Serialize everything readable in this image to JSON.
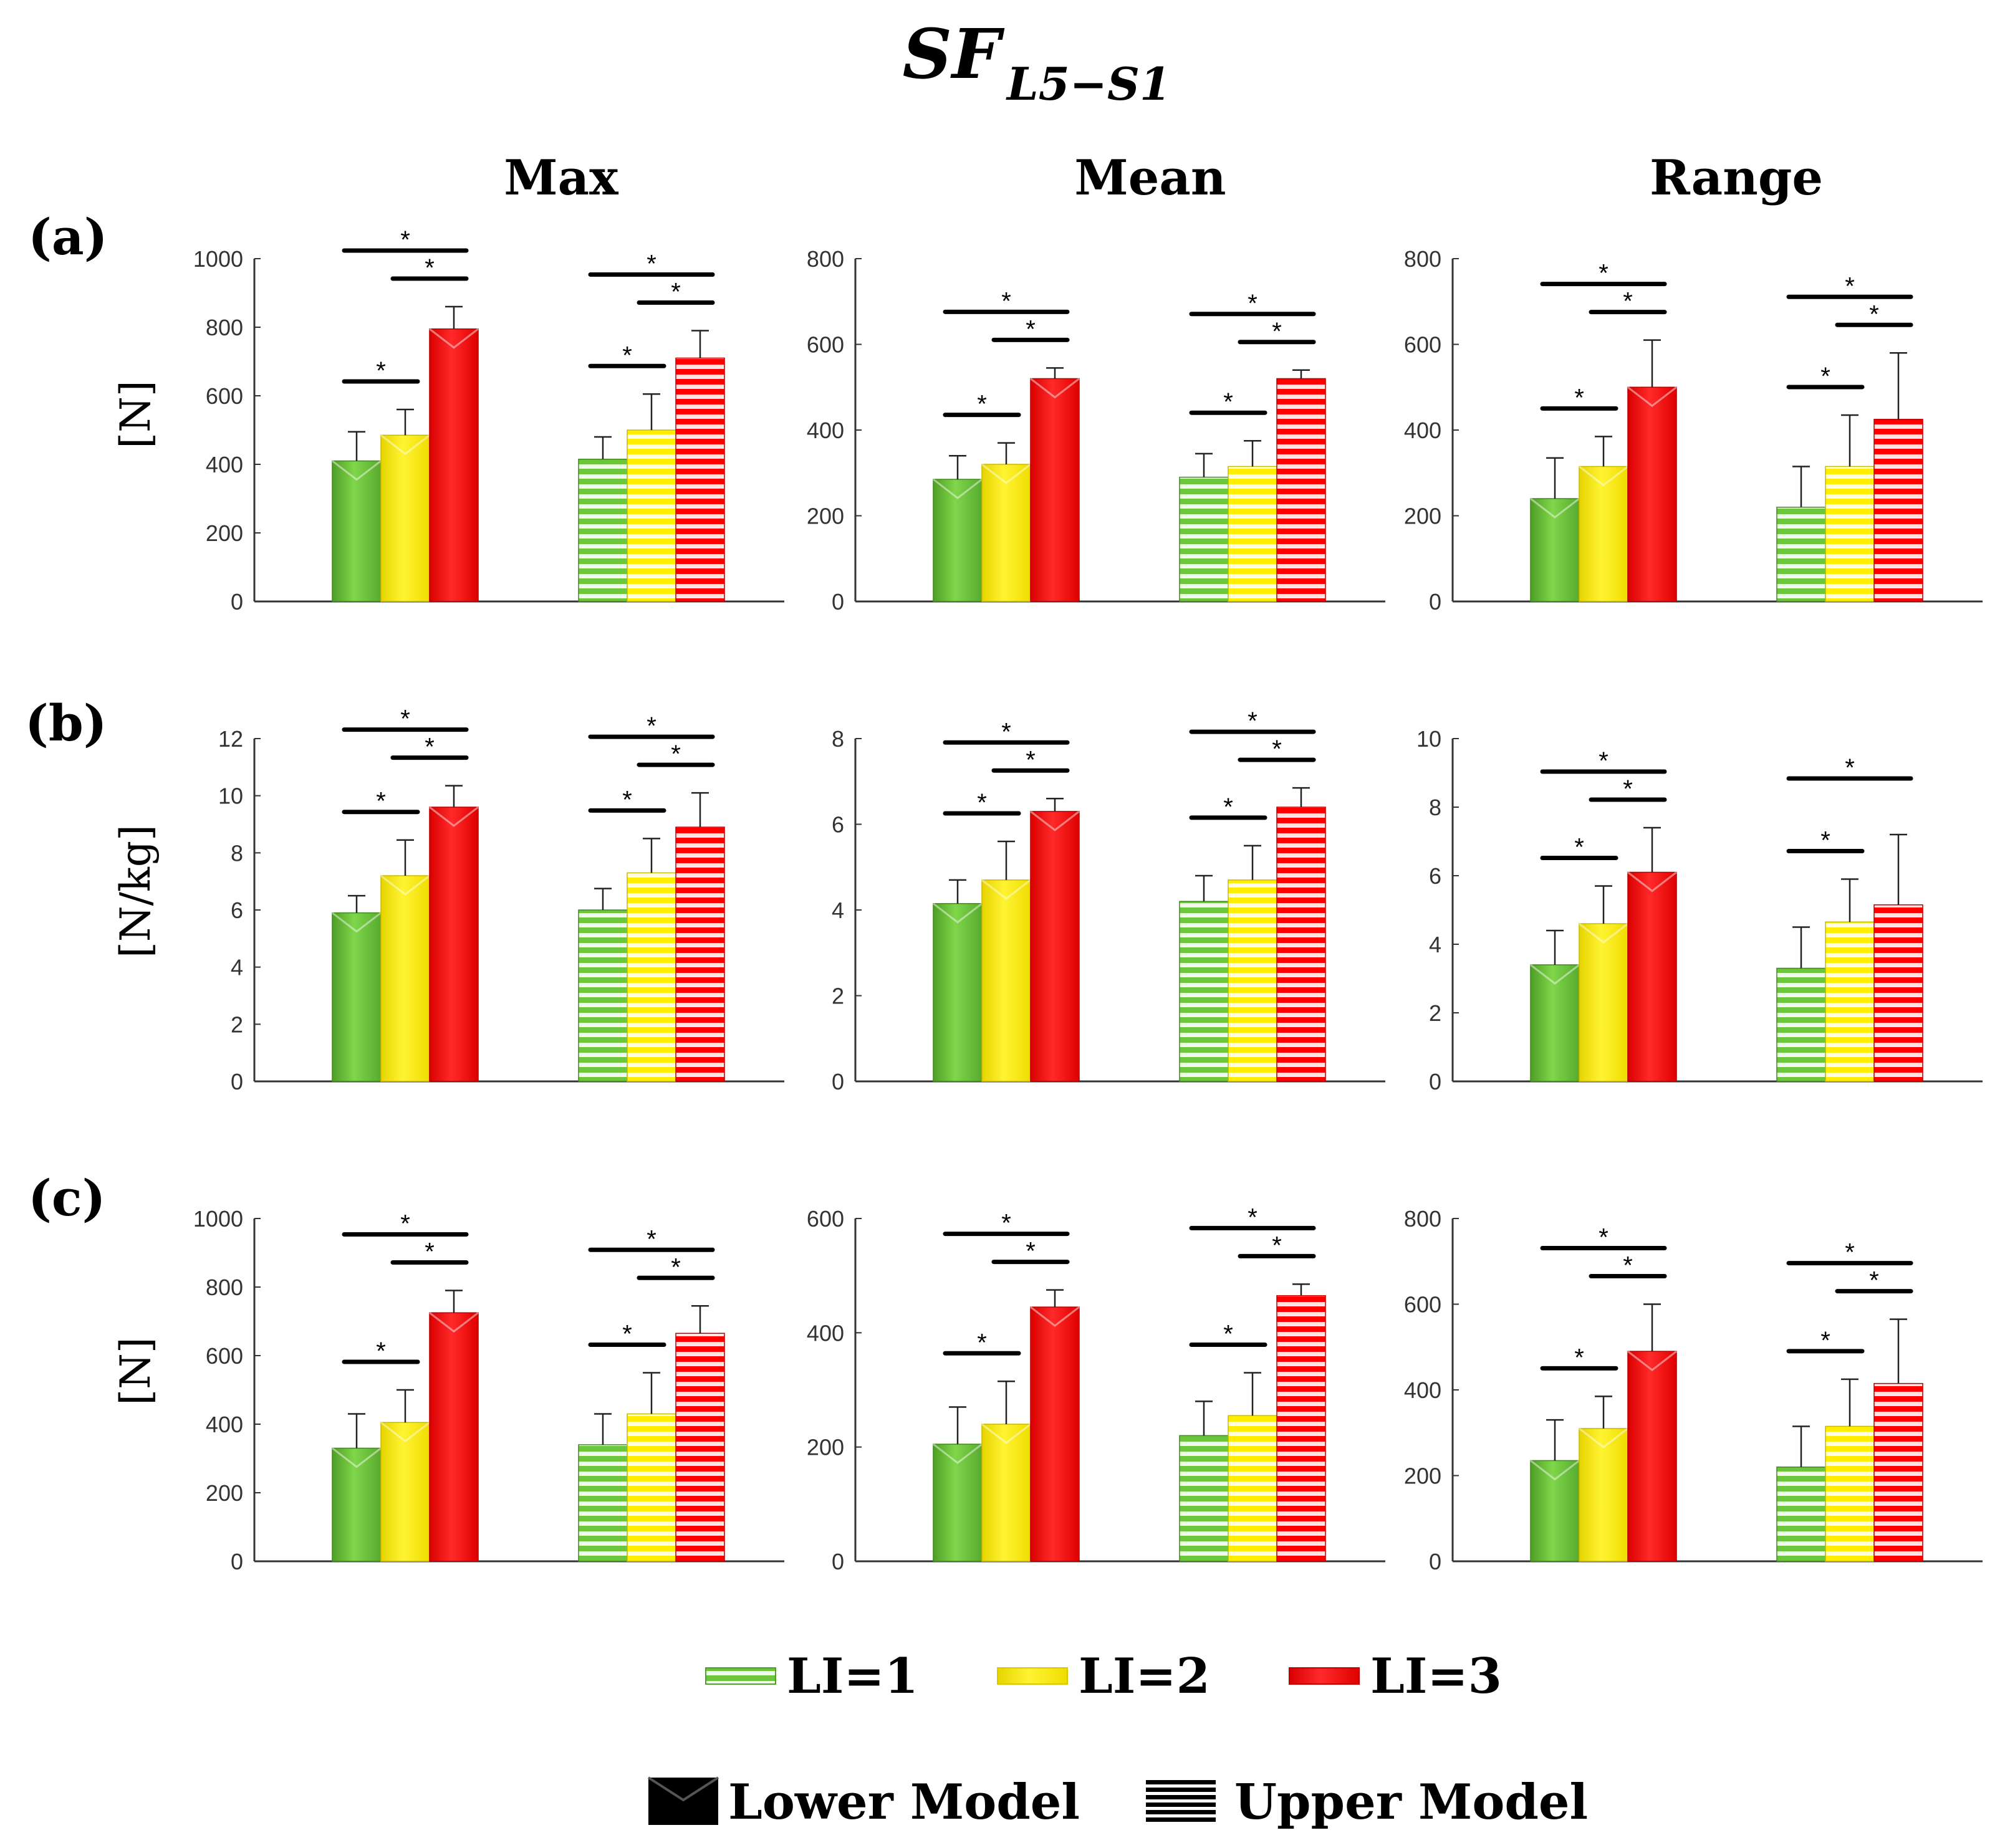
{
  "figure": {
    "title_main": "SF",
    "title_sub": "L5−S1",
    "column_titles": [
      "Max",
      "Mean",
      "Range"
    ],
    "row_labels": [
      "(a)",
      "(b)",
      "(c)"
    ],
    "row_units": [
      "[N]",
      "[N/kg]",
      "[N]"
    ],
    "colors": {
      "LI1": "#6cc63c",
      "LI2": "#ffee00",
      "LI3": "#ff0000"
    },
    "legend_li": [
      "LI=1",
      "LI=2",
      "LI=3"
    ],
    "legend_models": [
      "Lower Model",
      "Upper Model"
    ],
    "significance_label": "*"
  },
  "chart_data": [
    {
      "type": "bar",
      "row": "(a)",
      "column": "Max",
      "ylabel": "[N]",
      "ylim": [
        0,
        1000
      ],
      "yticks": [
        0,
        200,
        400,
        600,
        800,
        1000
      ],
      "groups": [
        "Lower Model",
        "Upper Model"
      ],
      "series": [
        {
          "name": "LI=1",
          "values": [
            410,
            415
          ],
          "errors": [
            85,
            65
          ]
        },
        {
          "name": "LI=2",
          "values": [
            485,
            500
          ],
          "errors": [
            75,
            105
          ]
        },
        {
          "name": "LI=3",
          "values": [
            795,
            710
          ],
          "errors": [
            65,
            80
          ]
        }
      ],
      "significance": [
        {
          "group": 0,
          "pair": [
            1,
            2
          ],
          "label": "*"
        },
        {
          "group": 0,
          "pair": [
            2,
            3
          ],
          "label": "*"
        },
        {
          "group": 0,
          "pair": [
            1,
            3
          ],
          "label": "*"
        },
        {
          "group": 1,
          "pair": [
            1,
            2
          ],
          "label": "*"
        },
        {
          "group": 1,
          "pair": [
            2,
            3
          ],
          "label": "*"
        },
        {
          "group": 1,
          "pair": [
            1,
            3
          ],
          "label": "*"
        }
      ]
    },
    {
      "type": "bar",
      "row": "(a)",
      "column": "Mean",
      "ylabel": "",
      "ylim": [
        0,
        800
      ],
      "yticks": [
        0,
        200,
        400,
        600,
        800
      ],
      "groups": [
        "Lower Model",
        "Upper Model"
      ],
      "series": [
        {
          "name": "LI=1",
          "values": [
            285,
            290
          ],
          "errors": [
            55,
            55
          ]
        },
        {
          "name": "LI=2",
          "values": [
            320,
            315
          ],
          "errors": [
            50,
            60
          ]
        },
        {
          "name": "LI=3",
          "values": [
            520,
            520
          ],
          "errors": [
            25,
            20
          ]
        }
      ],
      "significance": [
        {
          "group": 0,
          "pair": [
            1,
            2
          ],
          "label": "*"
        },
        {
          "group": 0,
          "pair": [
            2,
            3
          ],
          "label": "*"
        },
        {
          "group": 0,
          "pair": [
            1,
            3
          ],
          "label": "*"
        },
        {
          "group": 1,
          "pair": [
            1,
            2
          ],
          "label": "*"
        },
        {
          "group": 1,
          "pair": [
            2,
            3
          ],
          "label": "*"
        },
        {
          "group": 1,
          "pair": [
            1,
            3
          ],
          "label": "*"
        }
      ]
    },
    {
      "type": "bar",
      "row": "(a)",
      "column": "Range",
      "ylabel": "",
      "ylim": [
        0,
        800
      ],
      "yticks": [
        0,
        200,
        400,
        600,
        800
      ],
      "groups": [
        "Lower Model",
        "Upper Model"
      ],
      "series": [
        {
          "name": "LI=1",
          "values": [
            240,
            220
          ],
          "errors": [
            95,
            95
          ]
        },
        {
          "name": "LI=2",
          "values": [
            315,
            315
          ],
          "errors": [
            70,
            120
          ]
        },
        {
          "name": "LI=3",
          "values": [
            500,
            425
          ],
          "errors": [
            110,
            155
          ]
        }
      ],
      "significance": [
        {
          "group": 0,
          "pair": [
            1,
            2
          ],
          "label": "*"
        },
        {
          "group": 0,
          "pair": [
            2,
            3
          ],
          "label": "*"
        },
        {
          "group": 0,
          "pair": [
            1,
            3
          ],
          "label": "*"
        },
        {
          "group": 1,
          "pair": [
            1,
            2
          ],
          "label": "*"
        },
        {
          "group": 1,
          "pair": [
            2,
            3
          ],
          "label": "*"
        },
        {
          "group": 1,
          "pair": [
            1,
            3
          ],
          "label": "*"
        }
      ]
    },
    {
      "type": "bar",
      "row": "(b)",
      "column": "Max",
      "ylabel": "[N/kg]",
      "ylim": [
        0,
        12
      ],
      "yticks": [
        0,
        2,
        4,
        6,
        8,
        10,
        12
      ],
      "groups": [
        "Lower Model",
        "Upper Model"
      ],
      "series": [
        {
          "name": "LI=1",
          "values": [
            5.9,
            6.0
          ],
          "errors": [
            0.6,
            0.75
          ]
        },
        {
          "name": "LI=2",
          "values": [
            7.2,
            7.3
          ],
          "errors": [
            1.25,
            1.2
          ]
        },
        {
          "name": "LI=3",
          "values": [
            9.6,
            8.9
          ],
          "errors": [
            0.75,
            1.2
          ]
        }
      ],
      "significance": [
        {
          "group": 0,
          "pair": [
            1,
            2
          ],
          "label": "*"
        },
        {
          "group": 0,
          "pair": [
            2,
            3
          ],
          "label": "*"
        },
        {
          "group": 0,
          "pair": [
            1,
            3
          ],
          "label": "*"
        },
        {
          "group": 1,
          "pair": [
            1,
            2
          ],
          "label": "*"
        },
        {
          "group": 1,
          "pair": [
            2,
            3
          ],
          "label": "*"
        },
        {
          "group": 1,
          "pair": [
            1,
            3
          ],
          "label": "*"
        }
      ]
    },
    {
      "type": "bar",
      "row": "(b)",
      "column": "Mean",
      "ylabel": "",
      "ylim": [
        0,
        8
      ],
      "yticks": [
        0,
        2,
        4,
        6,
        8
      ],
      "groups": [
        "Lower Model",
        "Upper Model"
      ],
      "series": [
        {
          "name": "LI=1",
          "values": [
            4.15,
            4.2
          ],
          "errors": [
            0.55,
            0.6
          ]
        },
        {
          "name": "LI=2",
          "values": [
            4.7,
            4.7
          ],
          "errors": [
            0.9,
            0.8
          ]
        },
        {
          "name": "LI=3",
          "values": [
            6.3,
            6.4
          ],
          "errors": [
            0.3,
            0.45
          ]
        }
      ],
      "significance": [
        {
          "group": 0,
          "pair": [
            1,
            2
          ],
          "label": "*"
        },
        {
          "group": 0,
          "pair": [
            2,
            3
          ],
          "label": "*"
        },
        {
          "group": 0,
          "pair": [
            1,
            3
          ],
          "label": "*"
        },
        {
          "group": 1,
          "pair": [
            1,
            2
          ],
          "label": "*"
        },
        {
          "group": 1,
          "pair": [
            2,
            3
          ],
          "label": "*"
        },
        {
          "group": 1,
          "pair": [
            1,
            3
          ],
          "label": "*"
        }
      ]
    },
    {
      "type": "bar",
      "row": "(b)",
      "column": "Range",
      "ylabel": "",
      "ylim": [
        0,
        10
      ],
      "yticks": [
        0,
        2,
        4,
        6,
        8,
        10
      ],
      "groups": [
        "Lower Model",
        "Upper Model"
      ],
      "series": [
        {
          "name": "LI=1",
          "values": [
            3.4,
            3.3
          ],
          "errors": [
            1.0,
            1.2
          ]
        },
        {
          "name": "LI=2",
          "values": [
            4.6,
            4.65
          ],
          "errors": [
            1.1,
            1.25
          ]
        },
        {
          "name": "LI=3",
          "values": [
            6.1,
            5.15
          ],
          "errors": [
            1.3,
            2.05
          ]
        }
      ],
      "significance": [
        {
          "group": 0,
          "pair": [
            1,
            2
          ],
          "label": "*"
        },
        {
          "group": 0,
          "pair": [
            2,
            3
          ],
          "label": "*"
        },
        {
          "group": 0,
          "pair": [
            1,
            3
          ],
          "label": "*"
        },
        {
          "group": 1,
          "pair": [
            1,
            2
          ],
          "label": "*"
        },
        {
          "group": 1,
          "pair": [
            1,
            3
          ],
          "label": "*"
        }
      ]
    },
    {
      "type": "bar",
      "row": "(c)",
      "column": "Max",
      "ylabel": "[N]",
      "ylim": [
        0,
        1000
      ],
      "yticks": [
        0,
        200,
        400,
        600,
        800,
        1000
      ],
      "groups": [
        "Lower Model",
        "Upper Model"
      ],
      "series": [
        {
          "name": "LI=1",
          "values": [
            330,
            340
          ],
          "errors": [
            100,
            90
          ]
        },
        {
          "name": "LI=2",
          "values": [
            405,
            430
          ],
          "errors": [
            95,
            120
          ]
        },
        {
          "name": "LI=3",
          "values": [
            725,
            665
          ],
          "errors": [
            65,
            80
          ]
        }
      ],
      "significance": [
        {
          "group": 0,
          "pair": [
            1,
            2
          ],
          "label": "*"
        },
        {
          "group": 0,
          "pair": [
            2,
            3
          ],
          "label": "*"
        },
        {
          "group": 0,
          "pair": [
            1,
            3
          ],
          "label": "*"
        },
        {
          "group": 1,
          "pair": [
            1,
            2
          ],
          "label": "*"
        },
        {
          "group": 1,
          "pair": [
            2,
            3
          ],
          "label": "*"
        },
        {
          "group": 1,
          "pair": [
            1,
            3
          ],
          "label": "*"
        }
      ]
    },
    {
      "type": "bar",
      "row": "(c)",
      "column": "Mean",
      "ylabel": "",
      "ylim": [
        0,
        600
      ],
      "yticks": [
        0,
        200,
        400,
        600
      ],
      "groups": [
        "Lower Model",
        "Upper Model"
      ],
      "series": [
        {
          "name": "LI=1",
          "values": [
            205,
            220
          ],
          "errors": [
            65,
            60
          ]
        },
        {
          "name": "LI=2",
          "values": [
            240,
            255
          ],
          "errors": [
            75,
            75
          ]
        },
        {
          "name": "LI=3",
          "values": [
            445,
            465
          ],
          "errors": [
            30,
            20
          ]
        }
      ],
      "significance": [
        {
          "group": 0,
          "pair": [
            1,
            2
          ],
          "label": "*"
        },
        {
          "group": 0,
          "pair": [
            2,
            3
          ],
          "label": "*"
        },
        {
          "group": 0,
          "pair": [
            1,
            3
          ],
          "label": "*"
        },
        {
          "group": 1,
          "pair": [
            1,
            2
          ],
          "label": "*"
        },
        {
          "group": 1,
          "pair": [
            2,
            3
          ],
          "label": "*"
        },
        {
          "group": 1,
          "pair": [
            1,
            3
          ],
          "label": "*"
        }
      ]
    },
    {
      "type": "bar",
      "row": "(c)",
      "column": "Range",
      "ylabel": "",
      "ylim": [
        0,
        800
      ],
      "yticks": [
        0,
        200,
        400,
        600,
        800
      ],
      "groups": [
        "Lower Model",
        "Upper Model"
      ],
      "series": [
        {
          "name": "LI=1",
          "values": [
            235,
            220
          ],
          "errors": [
            95,
            95
          ]
        },
        {
          "name": "LI=2",
          "values": [
            310,
            315
          ],
          "errors": [
            75,
            110
          ]
        },
        {
          "name": "LI=3",
          "values": [
            490,
            415
          ],
          "errors": [
            110,
            150
          ]
        }
      ],
      "significance": [
        {
          "group": 0,
          "pair": [
            1,
            2
          ],
          "label": "*"
        },
        {
          "group": 0,
          "pair": [
            2,
            3
          ],
          "label": "*"
        },
        {
          "group": 0,
          "pair": [
            1,
            3
          ],
          "label": "*"
        },
        {
          "group": 1,
          "pair": [
            1,
            2
          ],
          "label": "*"
        },
        {
          "group": 1,
          "pair": [
            2,
            3
          ],
          "label": "*"
        },
        {
          "group": 1,
          "pair": [
            1,
            3
          ],
          "label": "*"
        }
      ]
    }
  ]
}
